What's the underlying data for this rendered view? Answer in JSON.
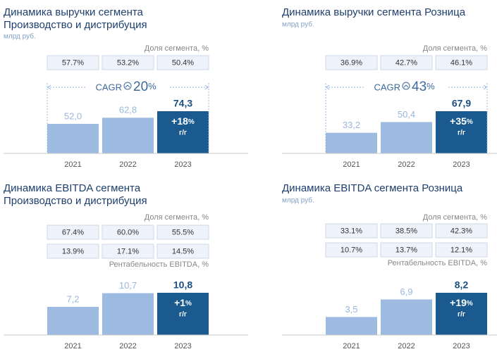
{
  "chart_data": [
    {
      "type": "bar",
      "title": [
        "Динамика выручки сегмента",
        "Производство и дистрибуция"
      ],
      "subtitle": "млрд руб.",
      "categories": [
        "2021",
        "2022",
        "2023"
      ],
      "values": [
        52.0,
        62.8,
        74.3
      ],
      "value_labels": [
        "52,0",
        "62,8",
        "74,3"
      ],
      "colors": [
        "#9dbbe0",
        "#9dbbe0",
        "#1b5a8f"
      ],
      "share": {
        "label": "Доля сегмента, %",
        "values": [
          57.7,
          53.2,
          50.4
        ],
        "value_labels": [
          "57.7%",
          "53.2%",
          "50.4%"
        ]
      },
      "cagr": {
        "label": "CAGR",
        "value": 20,
        "unit": "%"
      },
      "growth": {
        "value": 18,
        "value_label": "+18",
        "unit": "%",
        "period": "г/г"
      }
    },
    {
      "type": "bar",
      "title": [
        "Динамика выручки сегмента Розница"
      ],
      "subtitle": "млрд руб.",
      "categories": [
        "2021",
        "2022",
        "2023"
      ],
      "values": [
        33.2,
        50.4,
        67.9
      ],
      "value_labels": [
        "33,2",
        "50,4",
        "67,9"
      ],
      "colors": [
        "#9dbbe0",
        "#9dbbe0",
        "#1b5a8f"
      ],
      "share": {
        "label": "Доля сегмента, %",
        "values": [
          36.9,
          42.7,
          46.1
        ],
        "value_labels": [
          "36.9%",
          "42.7%",
          "46.1%"
        ]
      },
      "cagr": {
        "label": "CAGR",
        "value": 43,
        "unit": "%"
      },
      "growth": {
        "value": 35,
        "value_label": "+35",
        "unit": "%",
        "period": "г/г"
      }
    },
    {
      "type": "bar",
      "title": [
        "Динамика EBITDA сегмента",
        "Производство и дистрибуция"
      ],
      "categories": [
        "2021",
        "2022",
        "2023"
      ],
      "values": [
        7.2,
        10.7,
        10.8
      ],
      "value_labels": [
        "7,2",
        "10,7",
        "10,8"
      ],
      "colors": [
        "#9dbbe0",
        "#9dbbe0",
        "#1b5a8f"
      ],
      "share": {
        "label": "Доля сегмента, %",
        "values": [
          67.4,
          60.0,
          55.5
        ],
        "value_labels": [
          "67.4%",
          "60.0%",
          "55.5%"
        ]
      },
      "margin": {
        "label": "Рентабельность EBITDA, %",
        "values": [
          13.9,
          17.1,
          14.5
        ],
        "value_labels": [
          "13.9%",
          "17.1%",
          "14.5%"
        ]
      },
      "growth": {
        "value": 1,
        "value_label": "+1",
        "unit": "%",
        "period": "г/г"
      }
    },
    {
      "type": "bar",
      "title": [
        "Динамика EBITDA сегмента Розница"
      ],
      "subtitle": "млрд руб.",
      "categories": [
        "2021",
        "2022",
        "2023"
      ],
      "values": [
        3.5,
        6.9,
        8.2
      ],
      "value_labels": [
        "3,5",
        "6,9",
        "8,2"
      ],
      "colors": [
        "#9dbbe0",
        "#9dbbe0",
        "#1b5a8f"
      ],
      "share": {
        "label": "Доля сегмента, %",
        "values": [
          33.1,
          38.5,
          42.3
        ],
        "value_labels": [
          "33.1%",
          "38.5%",
          "42.3%"
        ]
      },
      "margin": {
        "label": "Рентабельность EBITDA, %",
        "values": [
          10.7,
          13.7,
          12.1
        ],
        "value_labels": [
          "10.7%",
          "13.7%",
          "12.1%"
        ]
      },
      "growth": {
        "value": 19,
        "value_label": "+19",
        "unit": "%",
        "period": "г/г"
      }
    }
  ]
}
